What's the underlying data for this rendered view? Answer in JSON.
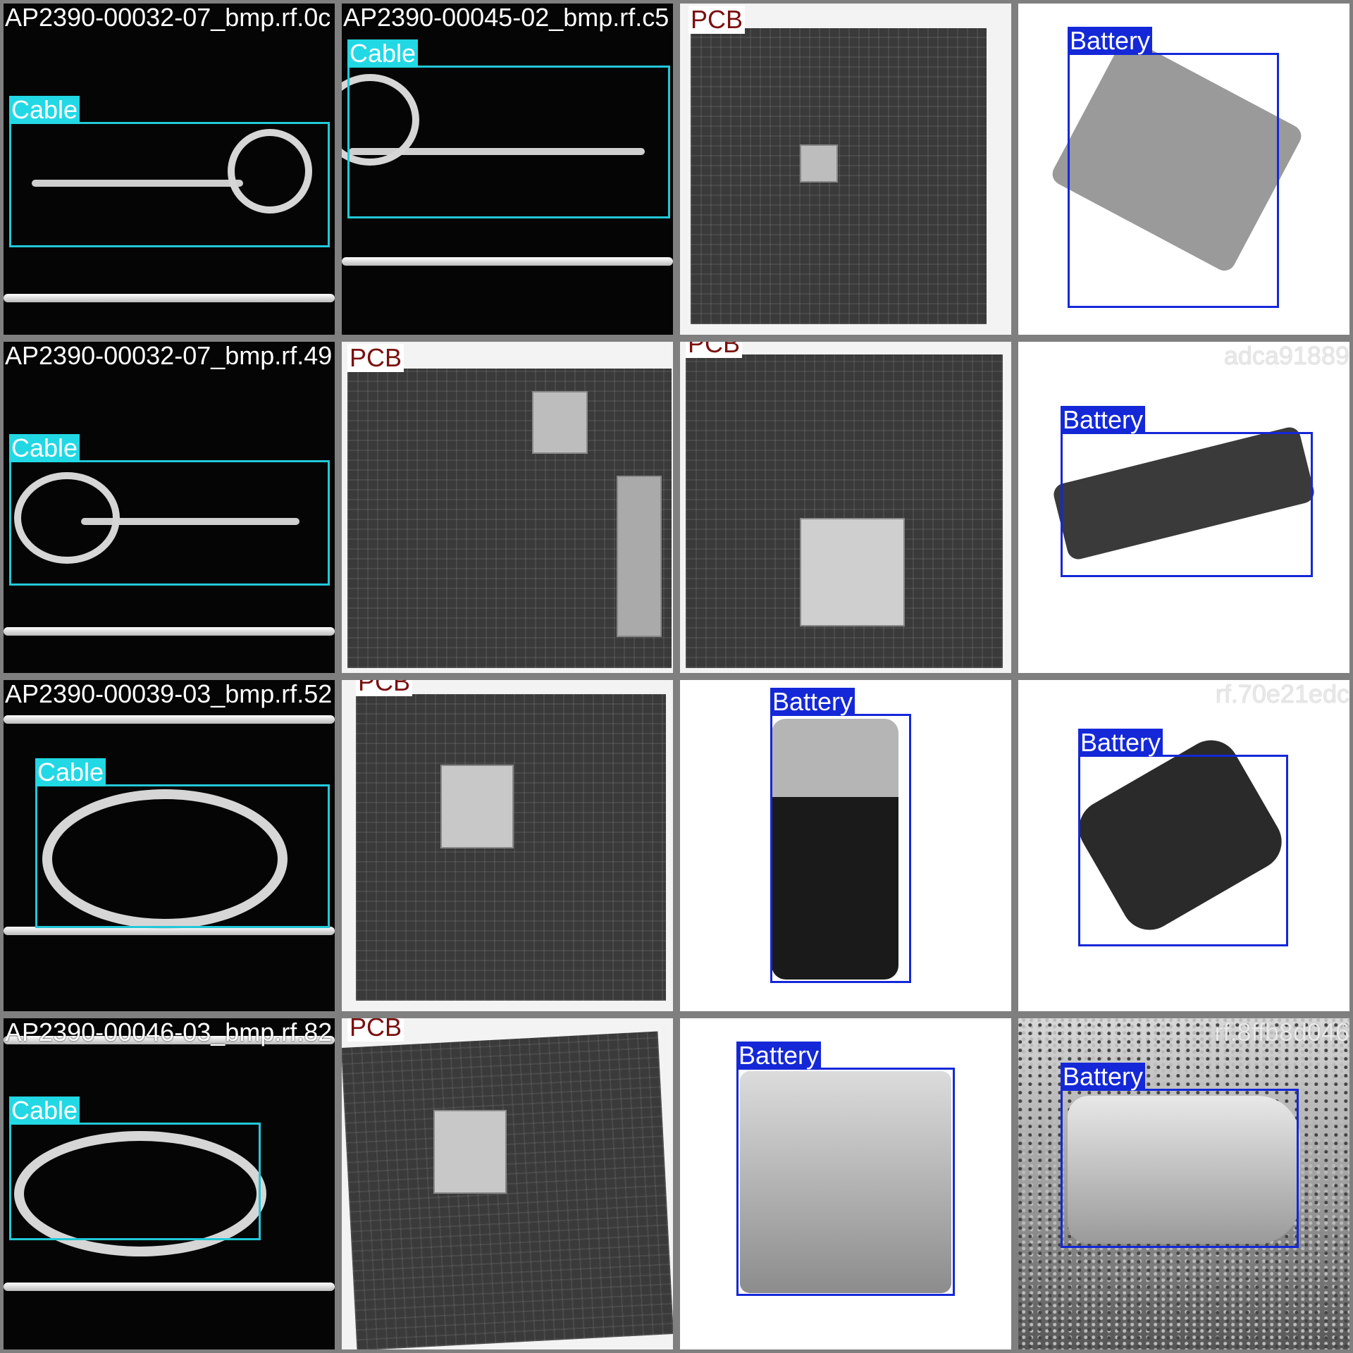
{
  "tiles": [
    {
      "filename": "AP2390-00032-07_bmp.rf.0c",
      "label": "Cable"
    },
    {
      "filename": "AP2390-00045-02_bmp.rf.c5",
      "label": "Cable"
    },
    {
      "filename": "",
      "label": "PCB"
    },
    {
      "filename": "",
      "label": "Battery"
    },
    {
      "filename": "AP2390-00032-07_bmp.rf.49",
      "label": "Cable"
    },
    {
      "filename": "",
      "label": "PCB"
    },
    {
      "filename": "",
      "label": "PCB"
    },
    {
      "filename": "adca91889",
      "label": "Battery"
    },
    {
      "filename": "AP2390-00039-03_bmp.rf.52",
      "label": "Cable"
    },
    {
      "filename": "",
      "label": "PCB"
    },
    {
      "filename": "",
      "label": "Battery"
    },
    {
      "filename": "rf.70e21edc",
      "label": "Battery"
    },
    {
      "filename": "AP2390-00046-03_bmp.rf.82",
      "label": "Cable"
    },
    {
      "filename": "",
      "label": "PCB"
    },
    {
      "filename": "",
      "label": "Battery"
    },
    {
      "filename": "rf.8ffb8d046",
      "label": "Battery"
    }
  ]
}
